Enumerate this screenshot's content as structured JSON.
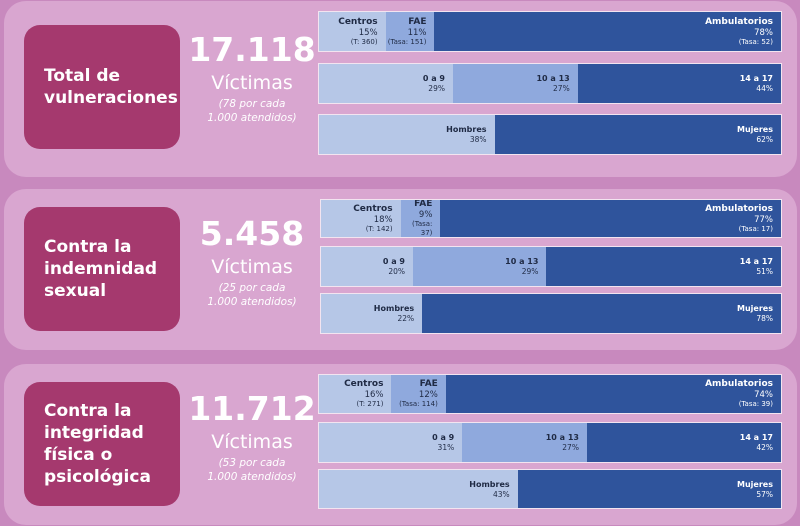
{
  "panels": [
    {
      "label": "Total de\nvulneraciones",
      "number": "17.118",
      "victimas": "Víctimas",
      "per_line1": "(78 por cada",
      "per_line2": "1.000 atendidos)",
      "modalidad": [
        {
          "name": "Centros",
          "pct": "15%",
          "sub": "(T: 360)",
          "value": 15
        },
        {
          "name": "FAE",
          "pct": "11%",
          "sub": "(Tasa: 151)",
          "value": 11
        },
        {
          "name": "Ambulatorios",
          "pct": "78%",
          "sub": "(Tasa: 52)",
          "value": 78
        }
      ],
      "edad": [
        {
          "name": "0 a 9",
          "pct": "29%",
          "value": 29
        },
        {
          "name": "10 a 13",
          "pct": "27%",
          "value": 27
        },
        {
          "name": "14 a 17",
          "pct": "44%",
          "value": 44
        }
      ],
      "sexo": [
        {
          "name": "Hombres",
          "pct": "38%",
          "value": 38
        },
        {
          "name": "Mujeres",
          "pct": "62%",
          "value": 62
        }
      ]
    },
    {
      "label": "Contra la\nindemnidad\nsexual",
      "number": "5.458",
      "victimas": "Víctimas",
      "per_line1": "(25 por cada",
      "per_line2": "1.000 atendidos)",
      "modalidad": [
        {
          "name": "Centros",
          "pct": "18%",
          "sub": "(T: 142)",
          "value": 18
        },
        {
          "name": "FAE",
          "pct": "9%",
          "sub": "(Tasa: 37)",
          "value": 9
        },
        {
          "name": "Ambulatorios",
          "pct": "77%",
          "sub": "(Tasa: 17)",
          "value": 77
        }
      ],
      "edad": [
        {
          "name": "0 a 9",
          "pct": "20%",
          "value": 20
        },
        {
          "name": "10 a 13",
          "pct": "29%",
          "value": 29
        },
        {
          "name": "14 a 17",
          "pct": "51%",
          "value": 51
        }
      ],
      "sexo": [
        {
          "name": "Hombres",
          "pct": "22%",
          "value": 22
        },
        {
          "name": "Mujeres",
          "pct": "78%",
          "value": 78
        }
      ]
    },
    {
      "label": "Contra la\nintegridad\nfísica o\npsicológica",
      "number": "11.712",
      "victimas": "Víctimas",
      "per_line1": "(53 por cada",
      "per_line2": "1.000 atendidos)",
      "modalidad": [
        {
          "name": "Centros",
          "pct": "16%",
          "sub": "(T: 271)",
          "value": 16
        },
        {
          "name": "FAE",
          "pct": "12%",
          "sub": "(Tasa: 114)",
          "value": 12
        },
        {
          "name": "Ambulatorios",
          "pct": "74%",
          "sub": "(Tasa: 39)",
          "value": 74
        }
      ],
      "edad": [
        {
          "name": "0 a 9",
          "pct": "31%",
          "value": 31
        },
        {
          "name": "10 a 13",
          "pct": "27%",
          "value": 27
        },
        {
          "name": "14 a 17",
          "pct": "42%",
          "value": 42
        }
      ],
      "sexo": [
        {
          "name": "Hombres",
          "pct": "43%",
          "value": 43
        },
        {
          "name": "Mujeres",
          "pct": "57%",
          "value": 57
        }
      ]
    }
  ],
  "colors": {
    "background": "#c889be",
    "panel": "#d9a6d0",
    "category_box": "#a5396e",
    "segment_light": "#b6c7e7",
    "segment_mid": "#8fa9dd",
    "segment_dark": "#2f549c"
  },
  "chart_data": [
    {
      "type": "bar",
      "stacked": true,
      "orientation": "horizontal",
      "categories": [
        "Total de vulneraciones",
        "Contra la indemnidad sexual",
        "Contra la integridad física o psicológica"
      ],
      "series": [
        {
          "name": "Centros",
          "values": [
            15,
            18,
            16
          ]
        },
        {
          "name": "FAE",
          "values": [
            11,
            9,
            12
          ]
        },
        {
          "name": "Ambulatorios",
          "values": [
            78,
            77,
            74
          ]
        }
      ]
    },
    {
      "type": "bar",
      "stacked": true,
      "orientation": "horizontal",
      "categories": [
        "Total de vulneraciones",
        "Contra la indemnidad sexual",
        "Contra la integridad física o psicológica"
      ],
      "series": [
        {
          "name": "0 a 9",
          "values": [
            29,
            20,
            31
          ]
        },
        {
          "name": "10 a 13",
          "values": [
            27,
            29,
            27
          ]
        },
        {
          "name": "14 a 17",
          "values": [
            44,
            51,
            42
          ]
        }
      ]
    },
    {
      "type": "bar",
      "stacked": true,
      "orientation": "horizontal",
      "categories": [
        "Total de vulneraciones",
        "Contra la indemnidad sexual",
        "Contra la integridad física o psicológica"
      ],
      "series": [
        {
          "name": "Hombres",
          "values": [
            38,
            22,
            43
          ]
        },
        {
          "name": "Mujeres",
          "values": [
            62,
            78,
            57
          ]
        }
      ]
    }
  ]
}
